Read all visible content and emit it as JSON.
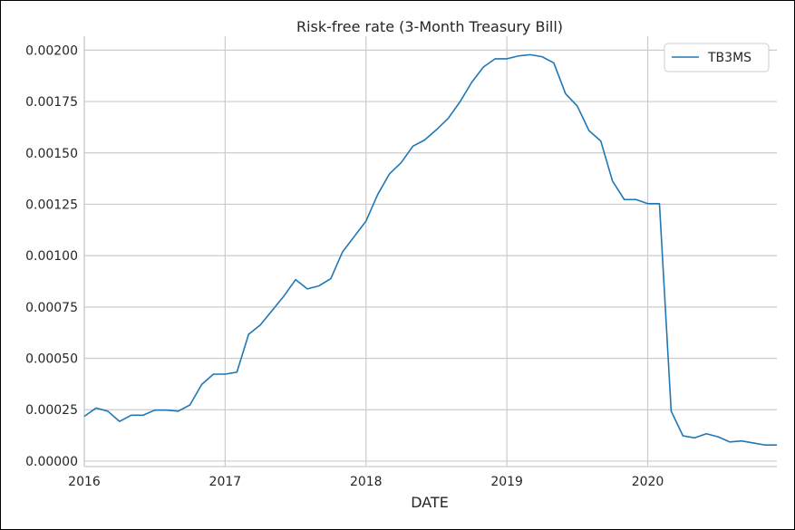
{
  "chart_data": {
    "type": "line",
    "title": "Risk-free rate (3-Month Treasury Bill)",
    "xlabel": "DATE",
    "ylabel": "",
    "xlim": [
      2016.0,
      2020.917
    ],
    "ylim": [
      -2.68e-05,
      0.0020678
    ],
    "x_ticks": [
      {
        "value": 2016,
        "label": "2016"
      },
      {
        "value": 2017,
        "label": "2017"
      },
      {
        "value": 2018,
        "label": "2018"
      },
      {
        "value": 2019,
        "label": "2019"
      },
      {
        "value": 2020,
        "label": "2020"
      }
    ],
    "y_ticks": [
      {
        "value": 0.0,
        "label": "0.00000"
      },
      {
        "value": 0.00025,
        "label": "0.00025"
      },
      {
        "value": 0.0005,
        "label": "0.00050"
      },
      {
        "value": 0.00075,
        "label": "0.00075"
      },
      {
        "value": 0.001,
        "label": "0.00100"
      },
      {
        "value": 0.00125,
        "label": "0.00125"
      },
      {
        "value": 0.0015,
        "label": "0.00150"
      },
      {
        "value": 0.00175,
        "label": "0.00175"
      },
      {
        "value": 0.002,
        "label": "0.00200"
      }
    ],
    "grid": true,
    "legend_position": "top-right",
    "series": [
      {
        "name": "TB3MS",
        "color": "#1f77b4",
        "x": [
          "2016-01",
          "2016-02",
          "2016-03",
          "2016-04",
          "2016-05",
          "2016-06",
          "2016-07",
          "2016-08",
          "2016-09",
          "2016-10",
          "2016-11",
          "2016-12",
          "2017-01",
          "2017-02",
          "2017-03",
          "2017-04",
          "2017-05",
          "2017-06",
          "2017-07",
          "2017-08",
          "2017-09",
          "2017-10",
          "2017-11",
          "2017-12",
          "2018-01",
          "2018-02",
          "2018-03",
          "2018-04",
          "2018-05",
          "2018-06",
          "2018-07",
          "2018-08",
          "2018-09",
          "2018-10",
          "2018-11",
          "2018-12",
          "2019-01",
          "2019-02",
          "2019-03",
          "2019-04",
          "2019-05",
          "2019-06",
          "2019-07",
          "2019-08",
          "2019-09",
          "2019-10",
          "2019-11",
          "2019-12",
          "2020-01",
          "2020-02",
          "2020-03",
          "2020-04",
          "2020-05",
          "2020-06",
          "2020-07",
          "2020-08",
          "2020-09",
          "2020-10",
          "2020-11",
          "2020-12"
        ],
        "values": [
          0.000218,
          0.000258,
          0.000243,
          0.000193,
          0.000223,
          0.000223,
          0.000248,
          0.000248,
          0.000243,
          0.000273,
          0.000373,
          0.000423,
          0.000423,
          0.000433,
          0.000617,
          0.000663,
          0.000733,
          0.000803,
          0.000883,
          0.000838,
          0.000853,
          0.000888,
          0.001018,
          0.001093,
          0.001168,
          0.001298,
          0.001398,
          0.001453,
          0.001533,
          0.001563,
          0.001613,
          0.001668,
          0.001748,
          0.001843,
          0.001918,
          0.001958,
          0.001958,
          0.001972,
          0.001978,
          0.001968,
          0.001938,
          0.001788,
          0.001728,
          0.001608,
          0.001558,
          0.001363,
          0.001273,
          0.001273,
          0.001253,
          0.001253,
          0.000243,
          0.000123,
          0.000113,
          0.000133,
          0.000118,
          9.3e-05,
          9.8e-05,
          8.8e-05,
          7.8e-05,
          7.8e-05
        ]
      }
    ]
  }
}
